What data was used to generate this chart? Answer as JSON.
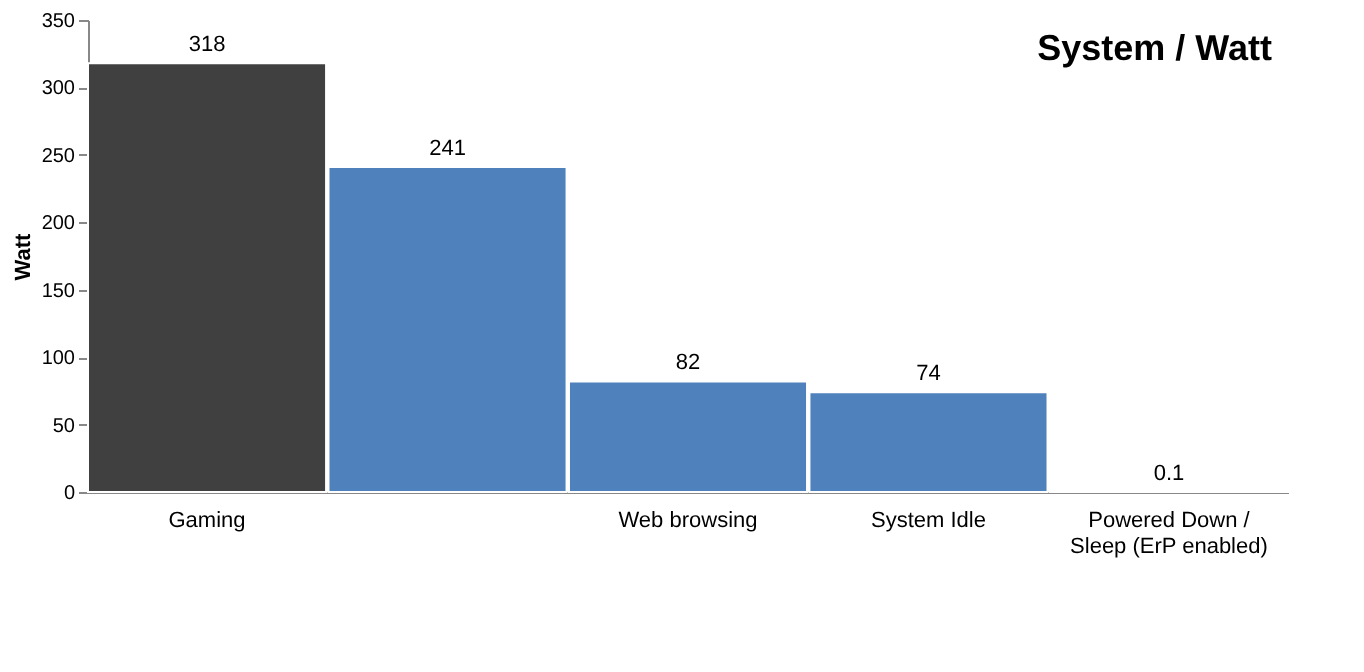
{
  "chart_data": {
    "type": "bar",
    "title": "System / Watt",
    "ylabel": "Watt",
    "categories": [
      "Gaming",
      null,
      "Web browsing",
      "System Idle",
      "Powered Down / Sleep (ErP enabled)"
    ],
    "values": [
      318,
      241,
      82,
      74,
      0.1
    ],
    "colors": [
      "#404040",
      "#4f81bd",
      "#4f81bd",
      "#4f81bd",
      "#4f81bd"
    ],
    "ylim": [
      0,
      350
    ],
    "yticks": [
      0,
      50,
      100,
      150,
      200,
      250,
      300,
      350
    ],
    "grid": false,
    "data_labels": true
  }
}
